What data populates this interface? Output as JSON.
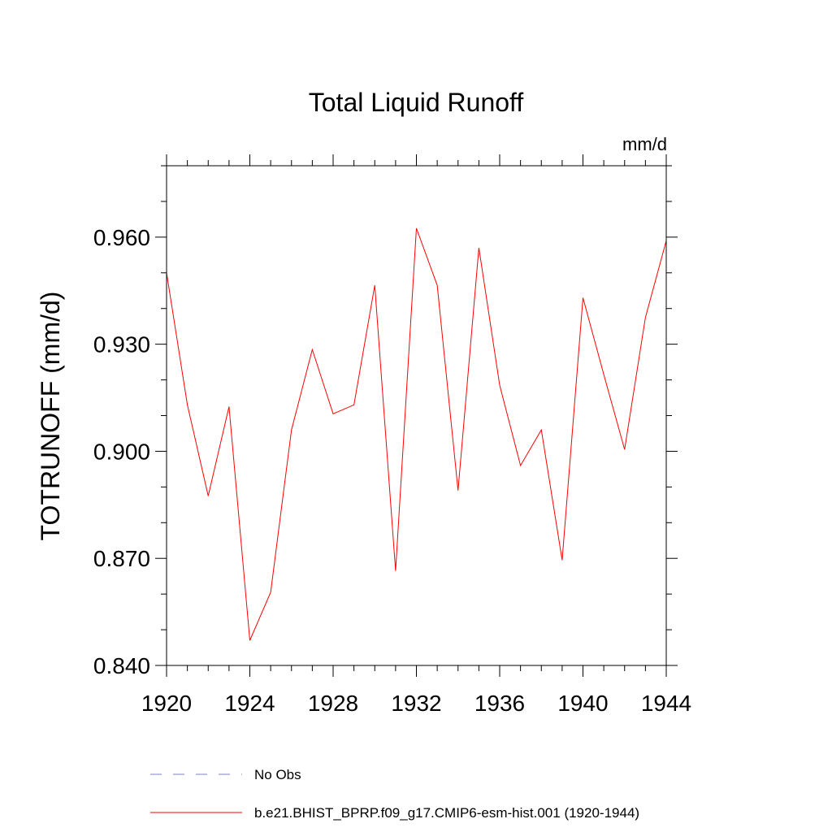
{
  "chart_data": {
    "type": "line",
    "title": "Total Liquid Runoff",
    "units": "mm/d",
    "ylabel": "TOTRUNOFF  (mm/d)",
    "xlabel": "",
    "xlim": [
      1920,
      1944
    ],
    "ylim": [
      0.84,
      0.98
    ],
    "x_ticks": [
      1920,
      1924,
      1928,
      1932,
      1936,
      1940,
      1944
    ],
    "x_tick_labels": [
      "1920",
      "1924",
      "1928",
      "1932",
      "1936",
      "1940",
      "1944"
    ],
    "y_ticks": [
      0.84,
      0.87,
      0.9,
      0.93,
      0.96
    ],
    "y_tick_labels": [
      "0.840",
      "0.870",
      "0.900",
      "0.930",
      "0.960"
    ],
    "y_minor_step": 0.01,
    "x_minor_step": 1,
    "grid": false,
    "legend_position": "bottom",
    "series": [
      {
        "name": "b.e21.BHIST_BPRP.f09_g17.CMIP6-esm-hist.001 (1920-1944)",
        "color": "#ff0000",
        "style": "solid",
        "x": [
          1920,
          1921,
          1922,
          1923,
          1924,
          1925,
          1926,
          1927,
          1928,
          1929,
          1930,
          1931,
          1932,
          1933,
          1934,
          1935,
          1936,
          1937,
          1938,
          1939,
          1940,
          1941,
          1942,
          1943,
          1944
        ],
        "values": [
          0.95,
          0.913,
          0.8875,
          0.9125,
          0.847,
          0.8605,
          0.906,
          0.9285,
          0.9105,
          0.913,
          0.9465,
          0.8665,
          0.9625,
          0.9465,
          0.889,
          0.957,
          0.9185,
          0.896,
          0.906,
          0.8695,
          0.943,
          0.9215,
          0.9005,
          0.9375,
          0.959
        ]
      },
      {
        "name": "No Obs",
        "color": "#8080c0",
        "style": "dashed",
        "x": [],
        "values": []
      }
    ]
  }
}
